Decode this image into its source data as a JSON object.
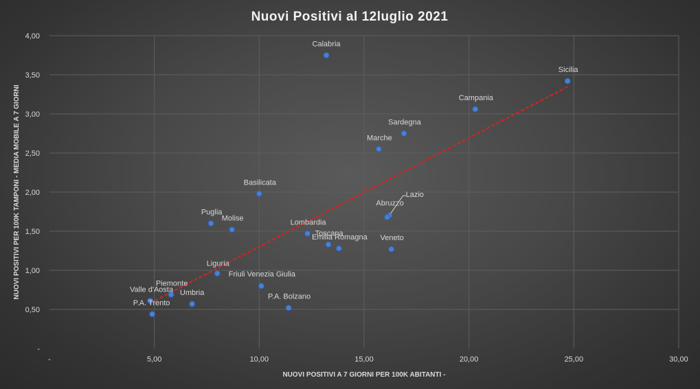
{
  "chart_data": {
    "type": "scatter",
    "title": "Nuovi  Positivi  al  12luglio  2021",
    "xlabel": "NUOVI POSITIVI  A 7 GIORNI PER 100K ABITANTI -",
    "ylabel": "NUOVI POSITIVI PER 100K TAMPONI - MEDIA MOBILE A 7 GIORNI",
    "xlim": [
      0,
      30
    ],
    "ylim": [
      0,
      4
    ],
    "grid": true,
    "legend": "none",
    "x_ticks": [
      {
        "value": 0,
        "label": "-"
      },
      {
        "value": 5,
        "label": "5,00"
      },
      {
        "value": 10,
        "label": "10,00"
      },
      {
        "value": 15,
        "label": "15,00"
      },
      {
        "value": 20,
        "label": "20,00"
      },
      {
        "value": 25,
        "label": "25,00"
      },
      {
        "value": 30,
        "label": "30,00"
      }
    ],
    "y_ticks": [
      {
        "value": 0,
        "label": "-"
      },
      {
        "value": 0.5,
        "label": "0,50"
      },
      {
        "value": 1.0,
        "label": "1,00"
      },
      {
        "value": 1.5,
        "label": "1,50"
      },
      {
        "value": 2.0,
        "label": "2,00"
      },
      {
        "value": 2.5,
        "label": "2,50"
      },
      {
        "value": 3.0,
        "label": "3,00"
      },
      {
        "value": 3.5,
        "label": "3,50"
      },
      {
        "value": 4.0,
        "label": "4,00"
      }
    ],
    "points": [
      {
        "label": "Calabria",
        "x": 13.2,
        "y": 3.75
      },
      {
        "label": "Sicilia",
        "x": 24.7,
        "y": 3.42
      },
      {
        "label": "Campania",
        "x": 20.3,
        "y": 3.06
      },
      {
        "label": "Sardegna",
        "x": 16.9,
        "y": 2.75
      },
      {
        "label": "Marche",
        "x": 15.7,
        "y": 2.55
      },
      {
        "label": "Basilicata",
        "x": 10.0,
        "y": 1.98
      },
      {
        "label": "Lazio",
        "x": 16.2,
        "y": 1.7
      },
      {
        "label": "Abruzzo",
        "x": 16.1,
        "y": 1.68
      },
      {
        "label": "Puglia",
        "x": 7.7,
        "y": 1.6
      },
      {
        "label": "Molise",
        "x": 8.7,
        "y": 1.52
      },
      {
        "label": "Lombardia",
        "x": 12.3,
        "y": 1.47
      },
      {
        "label": "Toscana",
        "x": 13.3,
        "y": 1.33
      },
      {
        "label": "Emilia Romagna",
        "x": 13.8,
        "y": 1.28
      },
      {
        "label": "Veneto",
        "x": 16.3,
        "y": 1.27
      },
      {
        "label": "Liguria",
        "x": 8.0,
        "y": 0.96
      },
      {
        "label": "Friuli Venezia Giulia",
        "x": 10.1,
        "y": 0.8
      },
      {
        "label": "Piemonte",
        "x": 5.8,
        "y": 0.69
      },
      {
        "label": "Valle d'Aosta",
        "x": 4.8,
        "y": 0.61
      },
      {
        "label": "Umbria",
        "x": 6.8,
        "y": 0.57
      },
      {
        "label": "P.A. Bolzano",
        "x": 11.4,
        "y": 0.52
      },
      {
        "label": "P.A. Trento",
        "x": 4.9,
        "y": 0.44
      }
    ],
    "trendline": {
      "type": "linear",
      "x": [
        4.8,
        24.8
      ],
      "y": [
        0.58,
        3.36
      ]
    }
  }
}
